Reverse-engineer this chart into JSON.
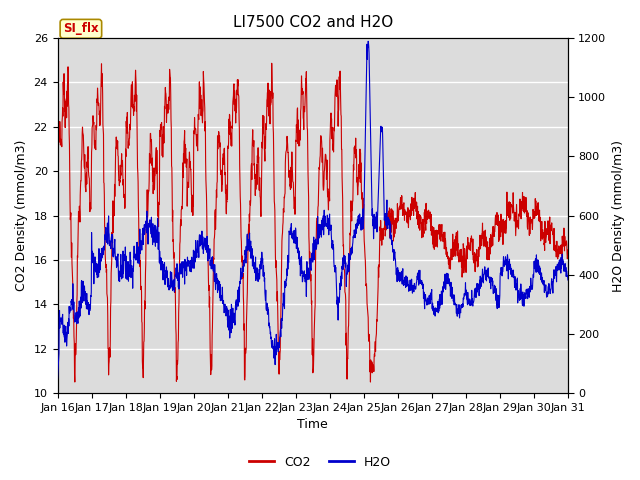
{
  "title": "LI7500 CO2 and H2O",
  "xlabel": "Time",
  "ylabel_left": "CO2 Density (mmol/m3)",
  "ylabel_right": "H2O Density (mmol/m3)",
  "ylim_left": [
    10,
    26
  ],
  "ylim_right": [
    0,
    1200
  ],
  "yticks_left": [
    10,
    12,
    14,
    16,
    18,
    20,
    22,
    24,
    26
  ],
  "yticks_right": [
    0,
    200,
    400,
    600,
    800,
    1000,
    1200
  ],
  "xtick_labels": [
    "Jan 16",
    "Jan 17",
    "Jan 18",
    "Jan 19",
    "Jan 20",
    "Jan 21",
    "Jan 22",
    "Jan 23",
    "Jan 24",
    "Jan 25",
    "Jan 26",
    "Jan 27",
    "Jan 28",
    "Jan 29",
    "Jan 30",
    "Jan 31"
  ],
  "co2_color": "#cc0000",
  "h2o_color": "#0000cc",
  "background_color": "#dcdcdc",
  "tab_label": "SI_flx",
  "tab_color": "#ffffcc",
  "tab_border_color": "#aa8800",
  "tab_text_color": "#cc0000",
  "legend_co2": "CO2",
  "legend_h2o": "H2O",
  "title_fontsize": 11,
  "axis_label_fontsize": 9,
  "tick_fontsize": 8,
  "legend_fontsize": 9,
  "n_days": 15,
  "pts_per_day": 120
}
